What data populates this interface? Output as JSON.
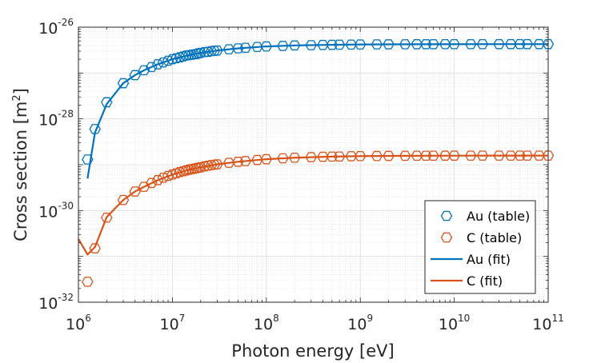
{
  "chart_data": {
    "type": "line",
    "xscale": "log",
    "yscale": "log",
    "xlim": [
      1000000,
      100000000000
    ],
    "ylim": [
      1e-32,
      1e-26
    ],
    "x_ticks": [
      {
        "value": 1000000,
        "base": "10",
        "exp": "6"
      },
      {
        "value": 10000000,
        "base": "10",
        "exp": "7"
      },
      {
        "value": 100000000,
        "base": "10",
        "exp": "8"
      },
      {
        "value": 1000000000,
        "base": "10",
        "exp": "9"
      },
      {
        "value": 10000000000,
        "base": "10",
        "exp": "10"
      },
      {
        "value": 100000000000,
        "base": "10",
        "exp": "11"
      }
    ],
    "y_ticks": [
      {
        "value": 1e-32,
        "base": "10",
        "exp": "-32"
      },
      {
        "value": 1e-30,
        "base": "10",
        "exp": "-30"
      },
      {
        "value": 1e-28,
        "base": "10",
        "exp": "-28"
      },
      {
        "value": 1e-26,
        "base": "10",
        "exp": "-26"
      }
    ],
    "xlabel": "Photon energy [eV]",
    "ylabel_main": "Cross section [m",
    "ylabel_sup": "2",
    "ylabel_end": "]",
    "grid": true,
    "legend_position": "bottom-right",
    "colors": {
      "au": "#0072BD",
      "c": "#D95319"
    },
    "series": [
      {
        "name": "Au (table)",
        "kind": "marker",
        "color": "#0072BD",
        "points": [
          [
            1250000,
            1.3e-29
          ],
          [
            1500000,
            6e-29
          ],
          [
            2000000,
            2.3e-28
          ],
          [
            3000000,
            6e-28
          ],
          [
            4000000,
            9e-28
          ],
          [
            5000000,
            1.15e-27
          ],
          [
            6000000,
            1.35e-27
          ],
          [
            7000000,
            1.55e-27
          ],
          [
            8000000,
            1.7e-27
          ],
          [
            9000000,
            1.85e-27
          ],
          [
            10000000,
            2e-27
          ],
          [
            11000000,
            2.1e-27
          ],
          [
            12000000,
            2.2e-27
          ],
          [
            13000000,
            2.3e-27
          ],
          [
            14000000,
            2.4e-27
          ],
          [
            15000000,
            2.45e-27
          ],
          [
            16000000,
            2.5e-27
          ],
          [
            17000000,
            2.55e-27
          ],
          [
            18000000,
            2.6e-27
          ],
          [
            19000000,
            2.7e-27
          ],
          [
            20000000,
            2.75e-27
          ],
          [
            22000000,
            2.85e-27
          ],
          [
            24000000,
            2.9e-27
          ],
          [
            26000000,
            3e-27
          ],
          [
            28000000,
            3.05e-27
          ],
          [
            30000000,
            3.1e-27
          ],
          [
            40000000,
            3.3e-27
          ],
          [
            50000000,
            3.45e-27
          ],
          [
            60000000,
            3.55e-27
          ],
          [
            80000000,
            3.7e-27
          ],
          [
            100000000,
            3.8e-27
          ],
          [
            150000000,
            3.9e-27
          ],
          [
            200000000,
            4e-27
          ],
          [
            300000000,
            4.05e-27
          ],
          [
            400000000,
            4.1e-27
          ],
          [
            500000000,
            4.12e-27
          ],
          [
            600000000,
            4.15e-27
          ],
          [
            800000000,
            4.18e-27
          ],
          [
            1000000000,
            4.2e-27
          ],
          [
            1500000000,
            4.22e-27
          ],
          [
            2000000000,
            4.23e-27
          ],
          [
            3000000000,
            4.24e-27
          ],
          [
            4000000000,
            4.25e-27
          ],
          [
            5000000000,
            4.25e-27
          ],
          [
            6000000000,
            4.25e-27
          ],
          [
            8000000000,
            4.26e-27
          ],
          [
            10000000000,
            4.26e-27
          ],
          [
            15000000000,
            4.26e-27
          ],
          [
            20000000000,
            4.26e-27
          ],
          [
            30000000000,
            4.27e-27
          ],
          [
            40000000000,
            4.27e-27
          ],
          [
            50000000000,
            4.27e-27
          ],
          [
            60000000000,
            4.27e-27
          ],
          [
            80000000000,
            4.27e-27
          ],
          [
            100000000000,
            4.27e-27
          ]
        ]
      },
      {
        "name": "C (table)",
        "kind": "marker",
        "color": "#D95319",
        "points": [
          [
            1250000,
            2.8e-32
          ],
          [
            1500000,
            1.5e-31
          ],
          [
            2000000,
            7e-31
          ],
          [
            3000000,
            1.7e-30
          ],
          [
            4000000,
            2.6e-30
          ],
          [
            5000000,
            3.3e-30
          ],
          [
            6000000,
            4e-30
          ],
          [
            7000000,
            4.6e-30
          ],
          [
            8000000,
            5.2e-30
          ],
          [
            9000000,
            5.7e-30
          ],
          [
            10000000,
            6.1e-30
          ],
          [
            11000000,
            6.5e-30
          ],
          [
            12000000,
            6.9e-30
          ],
          [
            13000000,
            7.2e-30
          ],
          [
            14000000,
            7.5e-30
          ],
          [
            15000000,
            7.8e-30
          ],
          [
            16000000,
            8e-30
          ],
          [
            17000000,
            8.2e-30
          ],
          [
            18000000,
            8.4e-30
          ],
          [
            19000000,
            8.6e-30
          ],
          [
            20000000,
            8.8e-30
          ],
          [
            22000000,
            9.2e-30
          ],
          [
            24000000,
            9.5e-30
          ],
          [
            26000000,
            9.8e-30
          ],
          [
            28000000,
            1e-29
          ],
          [
            30000000,
            1.02e-29
          ],
          [
            40000000,
            1.1e-29
          ],
          [
            50000000,
            1.16e-29
          ],
          [
            60000000,
            1.2e-29
          ],
          [
            80000000,
            1.27e-29
          ],
          [
            100000000,
            1.32e-29
          ],
          [
            150000000,
            1.38e-29
          ],
          [
            200000000,
            1.42e-29
          ],
          [
            300000000,
            1.46e-29
          ],
          [
            400000000,
            1.49e-29
          ],
          [
            500000000,
            1.5e-29
          ],
          [
            600000000,
            1.51e-29
          ],
          [
            800000000,
            1.53e-29
          ],
          [
            1000000000,
            1.54e-29
          ],
          [
            1500000000,
            1.55e-29
          ],
          [
            2000000000,
            1.56e-29
          ],
          [
            3000000000,
            1.565e-29
          ],
          [
            4000000000,
            1.57e-29
          ],
          [
            5000000000,
            1.57e-29
          ],
          [
            6000000000,
            1.57e-29
          ],
          [
            8000000000,
            1.575e-29
          ],
          [
            10000000000,
            1.575e-29
          ],
          [
            15000000000,
            1.578e-29
          ],
          [
            20000000000,
            1.58e-29
          ],
          [
            30000000000,
            1.58e-29
          ],
          [
            40000000000,
            1.58e-29
          ],
          [
            50000000000,
            1.58e-29
          ],
          [
            60000000000,
            1.58e-29
          ],
          [
            80000000000,
            1.58e-29
          ],
          [
            100000000000,
            1.58e-29
          ]
        ]
      },
      {
        "name": "Au (fit)",
        "kind": "line",
        "color": "#0072BD",
        "points": [
          [
            1250000,
            5e-30
          ],
          [
            1500000,
            5e-29
          ],
          [
            2000000,
            2.1e-28
          ],
          [
            3000000,
            6e-28
          ],
          [
            4000000,
            9e-28
          ],
          [
            5000000,
            1.15e-27
          ],
          [
            7000000,
            1.55e-27
          ],
          [
            10000000,
            2e-27
          ],
          [
            15000000,
            2.45e-27
          ],
          [
            20000000,
            2.75e-27
          ],
          [
            30000000,
            3.1e-27
          ],
          [
            50000000,
            3.45e-27
          ],
          [
            100000000,
            3.8e-27
          ],
          [
            200000000,
            4e-27
          ],
          [
            500000000,
            4.12e-27
          ],
          [
            1000000000,
            4.2e-27
          ],
          [
            3000000000,
            4.24e-27
          ],
          [
            10000000000,
            4.26e-27
          ],
          [
            30000000000,
            4.27e-27
          ],
          [
            100000000000,
            4.27e-27
          ]
        ]
      },
      {
        "name": "C (fit)",
        "kind": "line",
        "color": "#D95319",
        "points": [
          [
            1000000,
            2.4e-31
          ],
          [
            1250000,
            1.1e-31
          ],
          [
            1500000,
            1.6e-31
          ],
          [
            2000000,
            7.2e-31
          ],
          [
            3000000,
            1.7e-30
          ],
          [
            4000000,
            2.6e-30
          ],
          [
            5000000,
            3.3e-30
          ],
          [
            7000000,
            4.6e-30
          ],
          [
            10000000,
            6.1e-30
          ],
          [
            15000000,
            7.8e-30
          ],
          [
            20000000,
            8.8e-30
          ],
          [
            30000000,
            1.02e-29
          ],
          [
            50000000,
            1.16e-29
          ],
          [
            100000000,
            1.32e-29
          ],
          [
            200000000,
            1.42e-29
          ],
          [
            500000000,
            1.5e-29
          ],
          [
            1000000000,
            1.54e-29
          ],
          [
            3000000000,
            1.565e-29
          ],
          [
            10000000000,
            1.575e-29
          ],
          [
            30000000000,
            1.58e-29
          ],
          [
            100000000000,
            1.58e-29
          ]
        ]
      }
    ]
  }
}
